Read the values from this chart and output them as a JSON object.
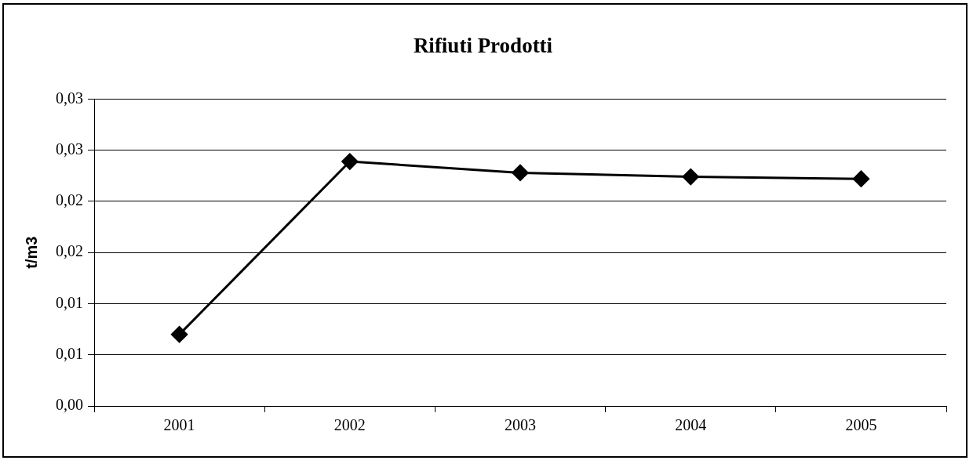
{
  "chart_data": {
    "type": "line",
    "title": "Rifiuti Prodotti",
    "ylabel": "t/m3",
    "categories": [
      "2001",
      "2002",
      "2003",
      "2004",
      "2005"
    ],
    "series": [
      {
        "color": "#000000",
        "values": [
          0.007,
          0.0239,
          0.0228,
          0.0224,
          0.0222
        ]
      }
    ],
    "ylim": [
      0,
      0.03
    ],
    "yticks": [
      {
        "value": 0,
        "label": "0,00"
      },
      {
        "value": 0.005,
        "label": "0,01"
      },
      {
        "value": 0.01,
        "label": "0,01"
      },
      {
        "value": 0.015,
        "label": "0,02"
      },
      {
        "value": 0.02,
        "label": "0,02"
      },
      {
        "value": 0.025,
        "label": "0,03"
      },
      {
        "value": 0.03,
        "label": "0,03"
      }
    ],
    "grid": "y",
    "legend": false,
    "marker": "diamond",
    "line_style": "solid"
  }
}
